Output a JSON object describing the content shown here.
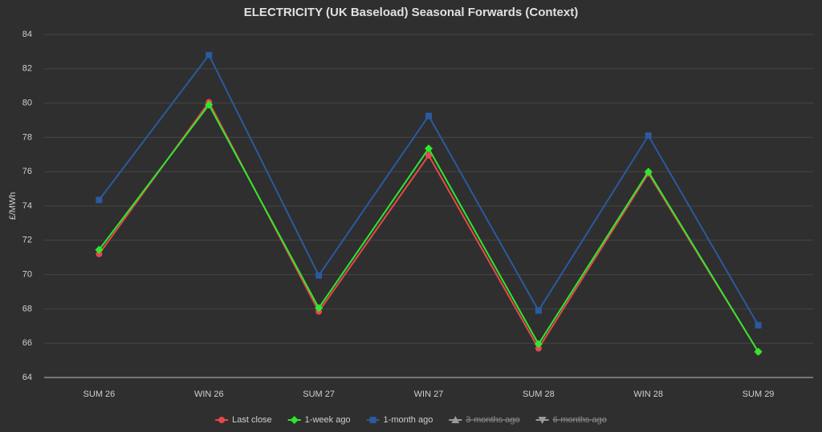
{
  "chart_data": {
    "type": "line",
    "title": "ELECTRICITY (UK Baseload) Seasonal Forwards (Context)",
    "y_label": "£/MWh",
    "categories": [
      "SUM 26",
      "WIN 26",
      "SUM 27",
      "WIN 27",
      "SUM 28",
      "WIN 28",
      "SUM 29"
    ],
    "series": [
      {
        "name": "Last close",
        "color": "#e8474b",
        "marker": "circle",
        "visible": true,
        "values": [
          71.2,
          80.05,
          67.85,
          76.95,
          65.7,
          75.9,
          65.5
        ]
      },
      {
        "name": "1-week ago",
        "color": "#2ee82e",
        "marker": "diamond",
        "visible": true,
        "values": [
          71.45,
          79.9,
          68.05,
          77.35,
          65.95,
          76.0,
          65.5
        ]
      },
      {
        "name": "1-month ago",
        "color": "#2a5aa0",
        "marker": "square",
        "visible": true,
        "values": [
          74.35,
          82.8,
          69.95,
          79.25,
          67.9,
          78.1,
          67.05
        ]
      },
      {
        "name": "3-months ago",
        "color": "#9a9a9a",
        "marker": "triangle",
        "visible": false,
        "values": [
          null,
          null,
          null,
          null,
          null,
          null,
          null
        ]
      },
      {
        "name": "6-months ago",
        "color": "#9a9a9a",
        "marker": "triangle-down",
        "visible": false,
        "values": [
          null,
          null,
          null,
          null,
          null,
          null,
          null
        ]
      }
    ],
    "ylim": [
      64,
      84
    ],
    "yticks": [
      64,
      66,
      68,
      70,
      72,
      74,
      76,
      78,
      80,
      82,
      84
    ],
    "grid": true,
    "legend": "bottom"
  }
}
